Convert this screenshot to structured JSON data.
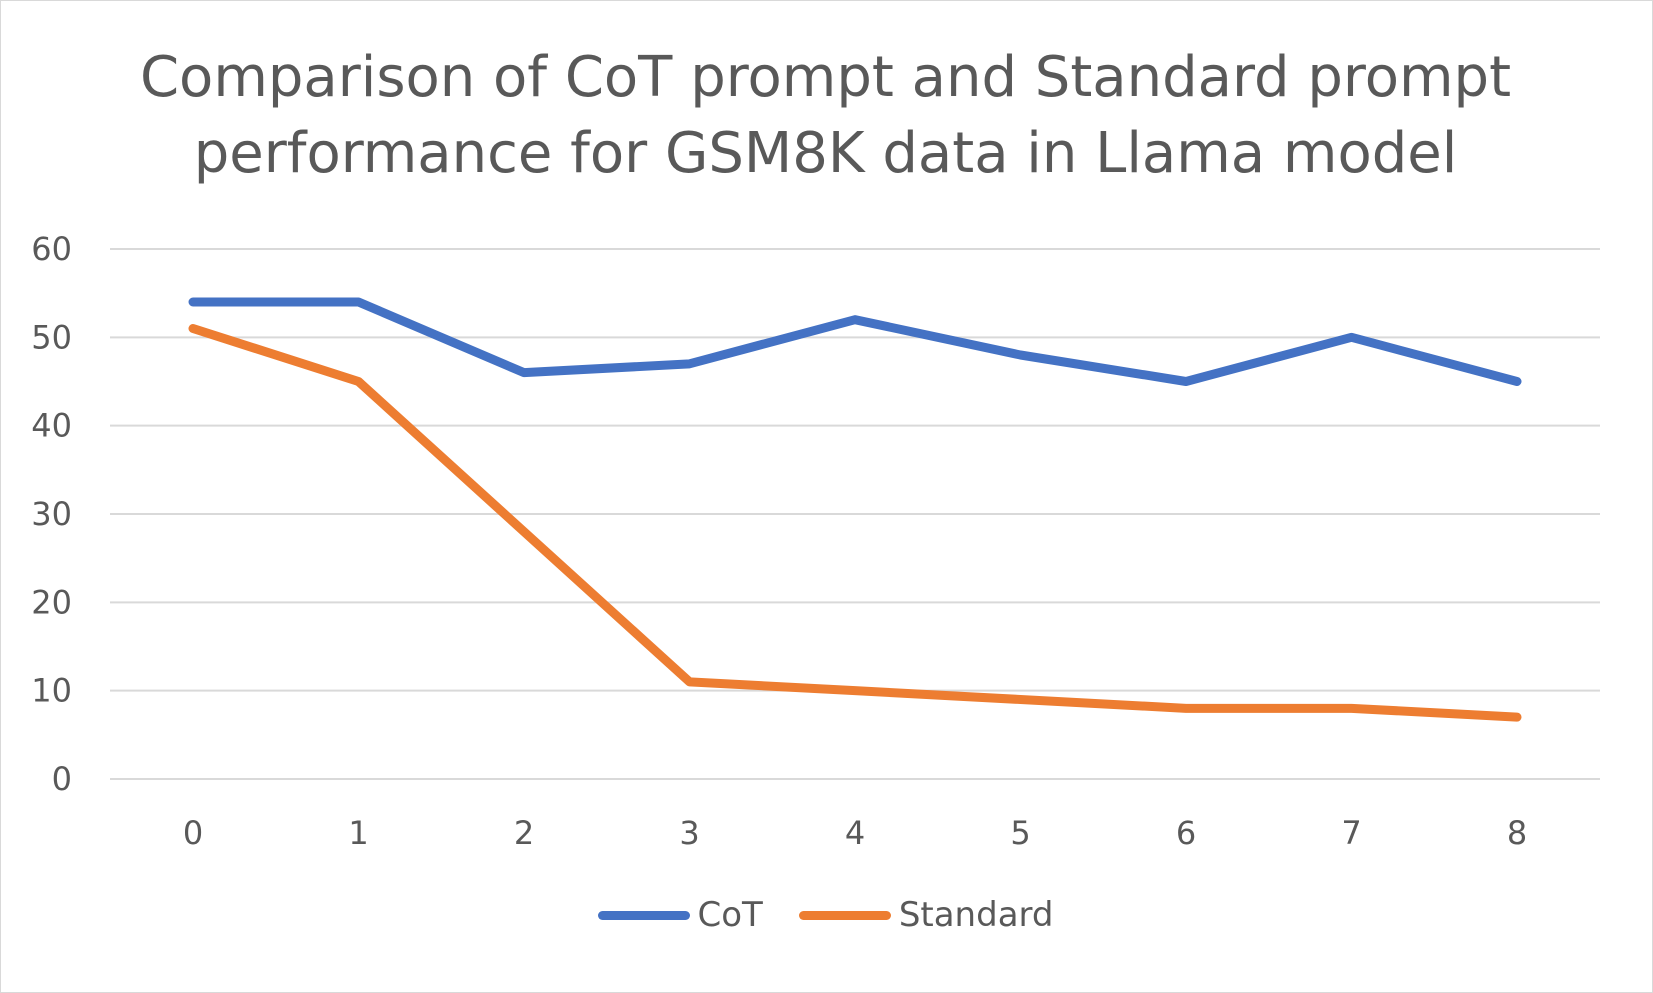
{
  "chart_data": {
    "type": "line",
    "title": "Comparison of CoT prompt and Standard prompt performance for GSM8K data in Llama model",
    "title_lines": [
      "Comparison of CoT prompt and Standard prompt",
      "performance for GSM8K data in Llama model"
    ],
    "xlabel": "",
    "ylabel": "",
    "x": [
      0,
      1,
      2,
      3,
      4,
      5,
      6,
      7,
      8
    ],
    "ylim": [
      0,
      60
    ],
    "yticks": [
      0,
      10,
      20,
      30,
      40,
      50,
      60
    ],
    "grid": true,
    "legend_position": "bottom",
    "series": [
      {
        "name": "CoT",
        "color": "#4472c4",
        "values": [
          54,
          54,
          46,
          47,
          52,
          48,
          45,
          50,
          45
        ]
      },
      {
        "name": "Standard",
        "color": "#ed7d31",
        "values": [
          51,
          45,
          28,
          11,
          10,
          9,
          8,
          8,
          7
        ]
      }
    ]
  }
}
